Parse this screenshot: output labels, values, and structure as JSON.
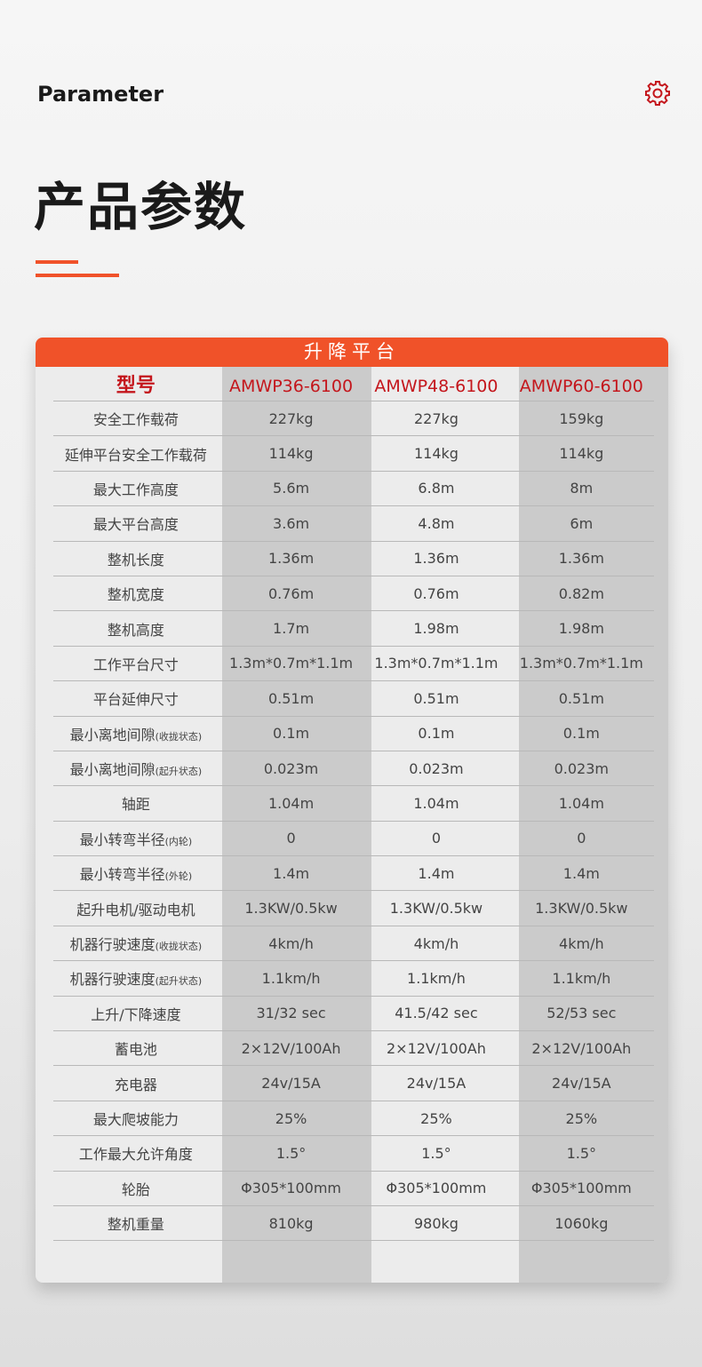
{
  "header": {
    "english_title": "Parameter",
    "title": "产品参数",
    "settings_icon": "gear-icon",
    "accent": "#f05229"
  },
  "table": {
    "caption": "升降平台",
    "model_label": "型号",
    "models": [
      "AMWP36-6100",
      "AMWP48-6100",
      "AMWP60-6100"
    ],
    "rows": [
      {
        "label": "安全工作载荷",
        "note": "",
        "values": [
          "227kg",
          "227kg",
          "159kg"
        ]
      },
      {
        "label": "延伸平台安全工作载荷",
        "note": "",
        "values": [
          "114kg",
          "114kg",
          "114kg"
        ]
      },
      {
        "label": "最大工作高度",
        "note": "",
        "values": [
          "5.6m",
          "6.8m",
          "8m"
        ]
      },
      {
        "label": "最大平台高度",
        "note": "",
        "values": [
          "3.6m",
          "4.8m",
          "6m"
        ]
      },
      {
        "label": "整机长度",
        "note": "",
        "values": [
          "1.36m",
          "1.36m",
          "1.36m"
        ]
      },
      {
        "label": "整机宽度",
        "note": "",
        "values": [
          "0.76m",
          "0.76m",
          "0.82m"
        ]
      },
      {
        "label": "整机高度",
        "note": "",
        "values": [
          "1.7m",
          "1.98m",
          "1.98m"
        ]
      },
      {
        "label": "工作平台尺寸",
        "note": "",
        "values": [
          "1.3m*0.7m*1.1m",
          "1.3m*0.7m*1.1m",
          "1.3m*0.7m*1.1m"
        ]
      },
      {
        "label": "平台延伸尺寸",
        "note": "",
        "values": [
          "0.51m",
          "0.51m",
          "0.51m"
        ]
      },
      {
        "label": "最小离地间隙",
        "note": "(收拢状态)",
        "values": [
          "0.1m",
          "0.1m",
          "0.1m"
        ]
      },
      {
        "label": "最小离地间隙",
        "note": "(起升状态)",
        "values": [
          "0.023m",
          "0.023m",
          "0.023m"
        ]
      },
      {
        "label": "轴距",
        "note": "",
        "values": [
          "1.04m",
          "1.04m",
          "1.04m"
        ]
      },
      {
        "label": "最小转弯半径",
        "note": "(内轮)",
        "values": [
          "0",
          "0",
          "0"
        ]
      },
      {
        "label": "最小转弯半径",
        "note": "(外轮)",
        "values": [
          "1.4m",
          "1.4m",
          "1.4m"
        ]
      },
      {
        "label": "起升电机/驱动电机",
        "note": "",
        "values": [
          "1.3KW/0.5kw",
          "1.3KW/0.5kw",
          "1.3KW/0.5kw"
        ]
      },
      {
        "label": "机器行驶速度",
        "note": "(收拢状态)",
        "values": [
          "4km/h",
          "4km/h",
          "4km/h"
        ]
      },
      {
        "label": "机器行驶速度",
        "note": "(起升状态)",
        "values": [
          "1.1km/h",
          "1.1km/h",
          "1.1km/h"
        ]
      },
      {
        "label": "上升/下降速度",
        "note": "",
        "values": [
          "31/32 sec",
          "41.5/42 sec",
          "52/53 sec"
        ]
      },
      {
        "label": "蓄电池",
        "note": "",
        "values": [
          "2×12V/100Ah",
          "2×12V/100Ah",
          "2×12V/100Ah"
        ]
      },
      {
        "label": "充电器",
        "note": "",
        "values": [
          "24v/15A",
          "24v/15A",
          "24v/15A"
        ]
      },
      {
        "label": "最大爬坡能力",
        "note": "",
        "values": [
          "25%",
          "25%",
          "25%"
        ]
      },
      {
        "label": "工作最大允许角度",
        "note": "",
        "values": [
          "1.5°",
          "1.5°",
          "1.5°"
        ]
      },
      {
        "label": "轮胎",
        "note": "",
        "values": [
          "Φ305*100mm",
          "Φ305*100mm",
          "Φ305*100mm"
        ]
      },
      {
        "label": "整机重量",
        "note": "",
        "values": [
          "810kg",
          "980kg",
          "1060kg"
        ]
      }
    ]
  }
}
